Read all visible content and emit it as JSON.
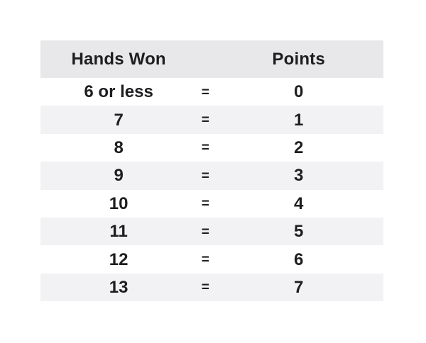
{
  "table": {
    "header": {
      "hands": "Hands Won",
      "points": "Points"
    },
    "equals_symbol": "=",
    "rows": [
      {
        "hands": "6 or less",
        "eq": "=",
        "points": "0"
      },
      {
        "hands": "7",
        "eq": "=",
        "points": "1"
      },
      {
        "hands": "8",
        "eq": "=",
        "points": "2"
      },
      {
        "hands": "9",
        "eq": "=",
        "points": "3"
      },
      {
        "hands": "10",
        "eq": "=",
        "points": "4"
      },
      {
        "hands": "11",
        "eq": "=",
        "points": "5"
      },
      {
        "hands": "12",
        "eq": "=",
        "points": "6"
      },
      {
        "hands": "13",
        "eq": "=",
        "points": "7"
      }
    ]
  },
  "colors": {
    "page_bg": "#ffffff",
    "header_bg": "#e8e7e9",
    "stripe_bg": "#f2f2f4",
    "text": "#1e1d1f"
  }
}
